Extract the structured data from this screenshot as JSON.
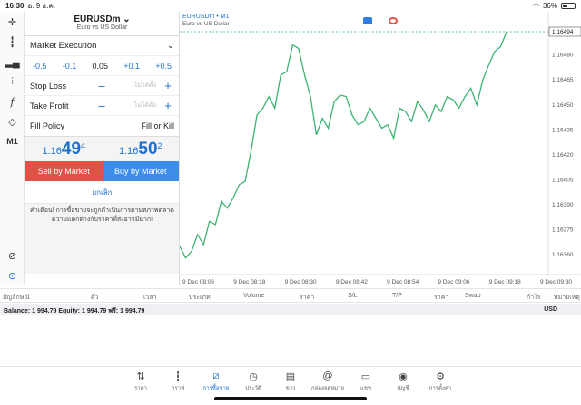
{
  "status_bar": {
    "time": "16:30",
    "date": "อ. 9 ธ.ค.",
    "battery": "36%",
    "battery_level": 0.36
  },
  "order": {
    "symbol": "EURUSDm",
    "symbol_desc": "Euro vs US Dollar",
    "execution": "Market Execution",
    "volume_steps": [
      "-0.5",
      "-0.1",
      "0.05",
      "+0.1",
      "+0.5"
    ],
    "stop_loss_label": "Stop Loss",
    "take_profit_label": "Take Profit",
    "not_set": "ไม่ได้ตั้ง",
    "fill_policy_label": "Fill Policy",
    "fill_policy_value": "Fill or Kill",
    "sell_quote": {
      "prefix": "1.16",
      "big": "49",
      "sup": "4"
    },
    "buy_quote": {
      "prefix": "1.16",
      "big": "50",
      "sup": "2"
    },
    "sell_label": "Sell by Market",
    "buy_label": "Buy by Market",
    "cancel_label": "ยกเลิก",
    "warning": "คำเตือน! การซื้อขายจะถูกดำเนินการตามสภาพตลาด ความแตกต่างกับราคาที่ส่งอาจมีมาก!"
  },
  "toolbar": {
    "timeframe": "M1"
  },
  "chart_data": {
    "type": "line",
    "title": "EURUSDm • M1",
    "subtitle": "Euro vs US Dollar",
    "x_ticks": [
      "9 Dec 08:06",
      "9 Dec 08:18",
      "9 Dec 08:30",
      "9 Dec 08:42",
      "9 Dec 08:54",
      "9 Dec 09:06",
      "9 Dec 09:18",
      "9 Dec 09:30"
    ],
    "y_ticks": [
      "1.16480",
      "1.16465",
      "1.16450",
      "1.16435",
      "1.16420",
      "1.16405",
      "1.16390",
      "1.16375",
      "1.16360"
    ],
    "ylim": [
      1.16348,
      1.16494
    ],
    "current_price": "1.16494",
    "line_color": "#3cb371",
    "values": [
      1.16365,
      1.16358,
      1.16362,
      1.16372,
      1.16366,
      1.1638,
      1.16378,
      1.16392,
      1.16388,
      1.16394,
      1.16402,
      1.16404,
      1.16422,
      1.16444,
      1.16448,
      1.16455,
      1.16448,
      1.16468,
      1.1647,
      1.16486,
      1.16484,
      1.16468,
      1.16455,
      1.16432,
      1.16442,
      1.16436,
      1.16452,
      1.16456,
      1.16455,
      1.16444,
      1.16438,
      1.1644,
      1.16448,
      1.16442,
      1.16436,
      1.16438,
      1.1643,
      1.16448,
      1.16446,
      1.1644,
      1.16452,
      1.16447,
      1.1644,
      1.1645,
      1.16446,
      1.16455,
      1.16453,
      1.16448,
      1.16455,
      1.1646,
      1.1645,
      1.16465,
      1.16474,
      1.16482,
      1.16485,
      1.16494
    ]
  },
  "table_headers": [
    "สัญลักษณ์",
    "ตั๋ว",
    "เวลา",
    "ประเภท",
    "Volume",
    "ราคา",
    "S/L",
    "T/P",
    "ราคา",
    "Swap",
    "กำไร",
    "หมายเหตุ"
  ],
  "balance": {
    "text": "Balance: 1 994.79 Equity: 1 994.79 ฟรี: 1 994.79",
    "currency": "USD"
  },
  "nav": [
    {
      "label": "ราคา",
      "icon": "quotes-icon"
    },
    {
      "label": "กราฟ",
      "icon": "chart-icon"
    },
    {
      "label": "การซื้อขาย",
      "icon": "trade-icon"
    },
    {
      "label": "ประวัติ",
      "icon": "history-icon"
    },
    {
      "label": "ข่าว",
      "icon": "news-icon"
    },
    {
      "label": "กล่องจดหมาย",
      "icon": "mailbox-icon"
    },
    {
      "label": "แชท",
      "icon": "chat-icon"
    },
    {
      "label": "บัญชี",
      "icon": "account-icon"
    },
    {
      "label": "การตั้งค่า",
      "icon": "settings-icon"
    }
  ]
}
